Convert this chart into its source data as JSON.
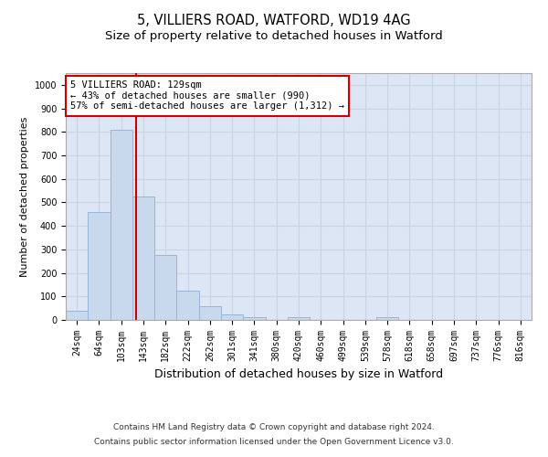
{
  "title": "5, VILLIERS ROAD, WATFORD, WD19 4AG",
  "subtitle": "Size of property relative to detached houses in Watford",
  "xlabel": "Distribution of detached houses by size in Watford",
  "ylabel": "Number of detached properties",
  "categories": [
    "24sqm",
    "64sqm",
    "103sqm",
    "143sqm",
    "182sqm",
    "222sqm",
    "262sqm",
    "301sqm",
    "341sqm",
    "380sqm",
    "420sqm",
    "460sqm",
    "499sqm",
    "539sqm",
    "578sqm",
    "618sqm",
    "658sqm",
    "697sqm",
    "737sqm",
    "776sqm",
    "816sqm"
  ],
  "values": [
    40,
    460,
    810,
    525,
    275,
    125,
    57,
    22,
    12,
    0,
    12,
    0,
    0,
    0,
    10,
    0,
    0,
    0,
    0,
    0,
    0
  ],
  "bar_color": "#c8d9ed",
  "bar_edge_color": "#9ab4d4",
  "grid_color": "#c8d4e4",
  "background_color": "#dce6f5",
  "property_line_x": 2.67,
  "annotation_line1": "5 VILLIERS ROAD: 129sqm",
  "annotation_line2": "← 43% of detached houses are smaller (990)",
  "annotation_line3": "57% of semi-detached houses are larger (1,312) →",
  "annotation_box_color": "#cc0000",
  "ylim_min": 0,
  "ylim_max": 1050,
  "ytick_max": 1000,
  "ytick_step": 100,
  "footer_line1": "Contains HM Land Registry data © Crown copyright and database right 2024.",
  "footer_line2": "Contains public sector information licensed under the Open Government Licence v3.0.",
  "title_fontsize": 10.5,
  "subtitle_fontsize": 9.5,
  "xlabel_fontsize": 9,
  "ylabel_fontsize": 8,
  "tick_fontsize": 7,
  "annotation_fontsize": 7.5,
  "footer_fontsize": 6.5
}
